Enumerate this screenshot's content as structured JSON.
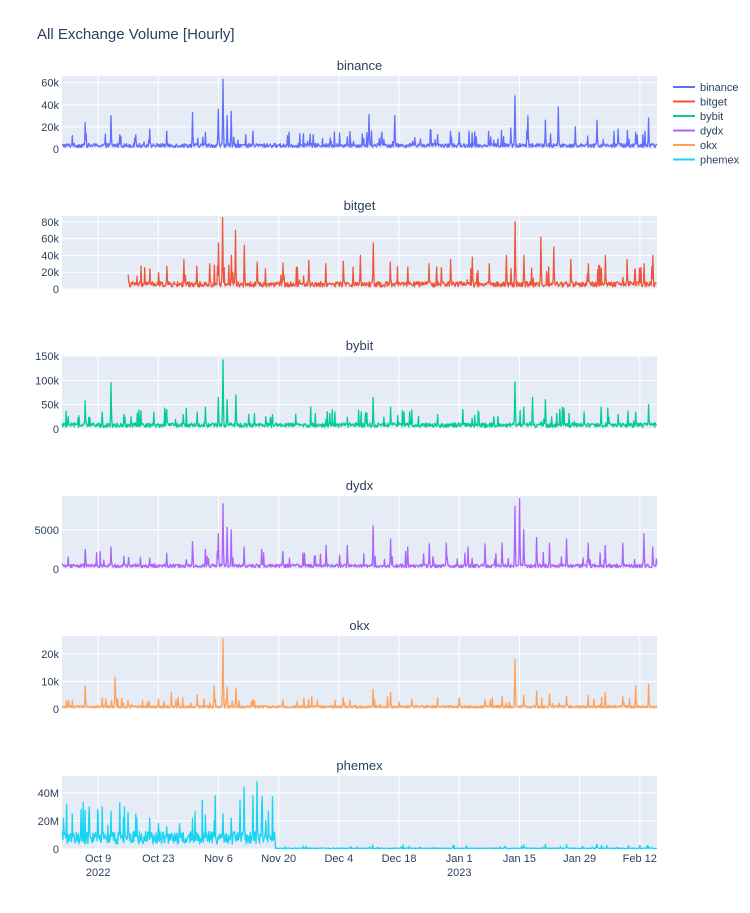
{
  "page_title": "All Exchange Volume [Hourly]",
  "x_axis": {
    "ticks": [
      {
        "label": "Oct 9",
        "year": "2022",
        "day": 9
      },
      {
        "label": "Oct 23",
        "year": "",
        "day": 23
      },
      {
        "label": "Nov 6",
        "year": "",
        "day": 37
      },
      {
        "label": "Nov 20",
        "year": "",
        "day": 51
      },
      {
        "label": "Dec 4",
        "year": "",
        "day": 65
      },
      {
        "label": "Dec 18",
        "year": "",
        "day": 79
      },
      {
        "label": "Jan 1",
        "year": "2023",
        "day": 93
      },
      {
        "label": "Jan 15",
        "year": "",
        "day": 107
      },
      {
        "label": "Jan 29",
        "year": "",
        "day": 121
      },
      {
        "label": "Feb 12",
        "year": "",
        "day": 135
      }
    ],
    "range": [
      0.6,
      139
    ]
  },
  "legend": [
    {
      "name": "binance",
      "color": "#636efa"
    },
    {
      "name": "bitget",
      "color": "#ef553b"
    },
    {
      "name": "bybit",
      "color": "#00cc96"
    },
    {
      "name": "dydx",
      "color": "#ab63fa"
    },
    {
      "name": "okx",
      "color": "#ffa15a"
    },
    {
      "name": "phemex",
      "color": "#19d3f3"
    }
  ],
  "chart_data": [
    {
      "type": "line",
      "title": "binance",
      "color": "#636efa",
      "ylim": [
        0,
        66000
      ],
      "yticks": [
        {
          "v": 0,
          "label": "0"
        },
        {
          "v": 20000,
          "label": "20k"
        },
        {
          "v": 40000,
          "label": "40k"
        },
        {
          "v": 60000,
          "label": "60k"
        }
      ],
      "start_day": 0.6,
      "end_day": 139,
      "base": 4000,
      "spikes": [
        [
          3,
          12000
        ],
        [
          6,
          24000
        ],
        [
          12,
          30000
        ],
        [
          14,
          13000
        ],
        [
          21,
          18000
        ],
        [
          25,
          16000
        ],
        [
          31,
          33000
        ],
        [
          34,
          15000
        ],
        [
          37,
          36000
        ],
        [
          38,
          63000
        ],
        [
          39,
          30000
        ],
        [
          40,
          34000
        ],
        [
          45,
          16000
        ],
        [
          53,
          12000
        ],
        [
          59,
          13000
        ],
        [
          63,
          10000
        ],
        [
          67,
          11000
        ],
        [
          72,
          31000
        ],
        [
          75,
          15000
        ],
        [
          78,
          30000
        ],
        [
          84,
          9000
        ],
        [
          88,
          13000
        ],
        [
          97,
          11000
        ],
        [
          101,
          8000
        ],
        [
          105,
          19000
        ],
        [
          106,
          48000
        ],
        [
          109,
          30000
        ],
        [
          113,
          26000
        ],
        [
          116,
          38000
        ],
        [
          120,
          20000
        ],
        [
          125,
          26000
        ],
        [
          130,
          18000
        ],
        [
          134,
          15000
        ],
        [
          137,
          28000
        ]
      ]
    },
    {
      "type": "line",
      "title": "bitget",
      "color": "#ef553b",
      "ylim": [
        0,
        87000
      ],
      "yticks": [
        {
          "v": 0,
          "label": "0"
        },
        {
          "v": 20000,
          "label": "20k"
        },
        {
          "v": 40000,
          "label": "40k"
        },
        {
          "v": 60000,
          "label": "60k"
        },
        {
          "v": 80000,
          "label": "80k"
        }
      ],
      "start_day": 16,
      "end_day": 139,
      "base": 7000,
      "spikes": [
        [
          18,
          15000
        ],
        [
          21,
          24000
        ],
        [
          25,
          27000
        ],
        [
          29,
          35000
        ],
        [
          32,
          27000
        ],
        [
          35,
          30000
        ],
        [
          37,
          55000
        ],
        [
          38,
          85000
        ],
        [
          40,
          40000
        ],
        [
          41,
          70000
        ],
        [
          43,
          52000
        ],
        [
          46,
          32000
        ],
        [
          52,
          31000
        ],
        [
          58,
          34000
        ],
        [
          62,
          30000
        ],
        [
          66,
          33000
        ],
        [
          70,
          40000
        ],
        [
          73,
          55000
        ],
        [
          77,
          32000
        ],
        [
          81,
          26000
        ],
        [
          86,
          30000
        ],
        [
          91,
          35000
        ],
        [
          96,
          38000
        ],
        [
          100,
          30000
        ],
        [
          104,
          40000
        ],
        [
          106,
          80000
        ],
        [
          108,
          40000
        ],
        [
          112,
          62000
        ],
        [
          115,
          50000
        ],
        [
          119,
          35000
        ],
        [
          123,
          30000
        ],
        [
          127,
          40000
        ],
        [
          132,
          35000
        ],
        [
          136,
          30000
        ],
        [
          138,
          40000
        ]
      ]
    },
    {
      "type": "line",
      "title": "bybit",
      "color": "#00cc96",
      "ylim": [
        0,
        150000
      ],
      "yticks": [
        {
          "v": 0,
          "label": "0"
        },
        {
          "v": 50000,
          "label": "50k"
        },
        {
          "v": 100000,
          "label": "100k"
        },
        {
          "v": 150000,
          "label": "150k"
        }
      ],
      "start_day": 0.6,
      "end_day": 139,
      "base": 10000,
      "spikes": [
        [
          2,
          25000
        ],
        [
          6,
          58000
        ],
        [
          10,
          35000
        ],
        [
          12,
          95000
        ],
        [
          15,
          30000
        ],
        [
          22,
          35000
        ],
        [
          25,
          40000
        ],
        [
          32,
          35000
        ],
        [
          34,
          45000
        ],
        [
          37,
          65000
        ],
        [
          38,
          142000
        ],
        [
          39,
          60000
        ],
        [
          41,
          70000
        ],
        [
          44,
          30000
        ],
        [
          48,
          25000
        ],
        [
          55,
          30000
        ],
        [
          62,
          20000
        ],
        [
          67,
          24000
        ],
        [
          73,
          65000
        ],
        [
          77,
          45000
        ],
        [
          80,
          28000
        ],
        [
          88,
          30000
        ],
        [
          96,
          22000
        ],
        [
          101,
          25000
        ],
        [
          106,
          97000
        ],
        [
          108,
          45000
        ],
        [
          110,
          65000
        ],
        [
          113,
          60000
        ],
        [
          117,
          45000
        ],
        [
          122,
          35000
        ],
        [
          126,
          45000
        ],
        [
          130,
          30000
        ],
        [
          134,
          35000
        ],
        [
          137,
          50000
        ]
      ]
    },
    {
      "type": "line",
      "title": "dydx",
      "color": "#ab63fa",
      "ylim": [
        0,
        9300
      ],
      "yticks": [
        {
          "v": 0,
          "label": "0"
        },
        {
          "v": 5000,
          "label": "5000"
        }
      ],
      "start_day": 0.6,
      "end_day": 139,
      "base": 500,
      "spikes": [
        [
          2,
          1500
        ],
        [
          6,
          2500
        ],
        [
          12,
          2800
        ],
        [
          15,
          1600
        ],
        [
          21,
          1400
        ],
        [
          25,
          2000
        ],
        [
          31,
          3500
        ],
        [
          34,
          2500
        ],
        [
          37,
          4500
        ],
        [
          38,
          8300
        ],
        [
          39,
          5300
        ],
        [
          40,
          5000
        ],
        [
          43,
          2800
        ],
        [
          47,
          2500
        ],
        [
          52,
          2200
        ],
        [
          57,
          2000
        ],
        [
          62,
          3000
        ],
        [
          67,
          3000
        ],
        [
          73,
          5500
        ],
        [
          77,
          3800
        ],
        [
          81,
          2800
        ],
        [
          86,
          3200
        ],
        [
          90,
          3300
        ],
        [
          95,
          2800
        ],
        [
          99,
          3200
        ],
        [
          103,
          3300
        ],
        [
          106,
          8000
        ],
        [
          107,
          9000
        ],
        [
          108,
          5000
        ],
        [
          111,
          4000
        ],
        [
          114,
          3300
        ],
        [
          118,
          3800
        ],
        [
          123,
          3300
        ],
        [
          127,
          3000
        ],
        [
          131,
          3300
        ],
        [
          136,
          4500
        ],
        [
          138,
          2800
        ]
      ]
    },
    {
      "type": "line",
      "title": "okx",
      "color": "#ffa15a",
      "ylim": [
        0,
        26500
      ],
      "yticks": [
        {
          "v": 0,
          "label": "0"
        },
        {
          "v": 10000,
          "label": "10k"
        },
        {
          "v": 20000,
          "label": "20k"
        }
      ],
      "start_day": 0.6,
      "end_day": 139,
      "base": 1000,
      "spikes": [
        [
          3,
          3000
        ],
        [
          6,
          8500
        ],
        [
          10,
          4000
        ],
        [
          13,
          11500
        ],
        [
          16,
          3000
        ],
        [
          23,
          3500
        ],
        [
          26,
          6000
        ],
        [
          32,
          5000
        ],
        [
          36,
          8500
        ],
        [
          38,
          25500
        ],
        [
          39,
          8000
        ],
        [
          41,
          7500
        ],
        [
          45,
          3500
        ],
        [
          52,
          3500
        ],
        [
          60,
          3000
        ],
        [
          66,
          4000
        ],
        [
          73,
          7000
        ],
        [
          77,
          6000
        ],
        [
          82,
          3500
        ],
        [
          88,
          4000
        ],
        [
          93,
          4000
        ],
        [
          99,
          3500
        ],
        [
          103,
          4500
        ],
        [
          106,
          18000
        ],
        [
          108,
          5000
        ],
        [
          111,
          6500
        ],
        [
          114,
          5500
        ],
        [
          118,
          4500
        ],
        [
          123,
          5000
        ],
        [
          127,
          6000
        ],
        [
          131,
          4500
        ],
        [
          134,
          8500
        ],
        [
          137,
          9000
        ]
      ]
    },
    {
      "type": "line",
      "title": "phemex",
      "color": "#19d3f3",
      "ylim": [
        0,
        52000000
      ],
      "yticks": [
        {
          "v": 0,
          "label": "0"
        },
        {
          "v": 20000000,
          "label": "20M"
        },
        {
          "v": 40000000,
          "label": "40M"
        }
      ],
      "start_day": 0.6,
      "end_day": 139,
      "base": 10000000,
      "drop_day": 50,
      "post_base": 600000,
      "spikes": [
        [
          1,
          22000000
        ],
        [
          3,
          25000000
        ],
        [
          5,
          28000000
        ],
        [
          7,
          30000000
        ],
        [
          9,
          24000000
        ],
        [
          10,
          30000000
        ],
        [
          12,
          27000000
        ],
        [
          14,
          33000000
        ],
        [
          16,
          26000000
        ],
        [
          18,
          22000000
        ],
        [
          21,
          22000000
        ],
        [
          23,
          18000000
        ],
        [
          25,
          16000000
        ],
        [
          28,
          18000000
        ],
        [
          31,
          22000000
        ],
        [
          34,
          24000000
        ],
        [
          36,
          20000000
        ],
        [
          38,
          25000000
        ],
        [
          40,
          22000000
        ],
        [
          42,
          35000000
        ],
        [
          43,
          44000000
        ],
        [
          45,
          38000000
        ],
        [
          46,
          48000000
        ],
        [
          47,
          30000000
        ],
        [
          48,
          20000000
        ],
        [
          50,
          12000000
        ],
        [
          108,
          3000000
        ],
        [
          113,
          3200000
        ],
        [
          118,
          3000000
        ],
        [
          125,
          3500000
        ],
        [
          135,
          2500000
        ]
      ]
    }
  ]
}
